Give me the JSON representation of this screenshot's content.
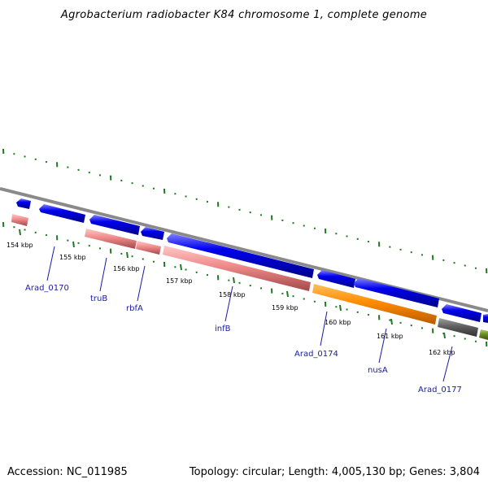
{
  "title": "Agrobacterium radiobacter K84 chromosome 1, complete genome",
  "accession": "Accession: NC_011985",
  "summary": "Topology: circular; Length: 4,005,130 bp; Genes: 3,804",
  "colors": {
    "backbone": "#8a8a8a",
    "forward_gene": "#0000ee",
    "rna_pink": "#ef8a8a",
    "orange": "#ff8c00",
    "gray_feature": "#606060",
    "olive": "#6b8e23",
    "tick_green": "#1e7a1e",
    "label_blue": "#1a1aa6"
  },
  "scale_ticks": [
    {
      "label": "154 kbp"
    },
    {
      "label": "155 kbp"
    },
    {
      "label": "156 kbp"
    },
    {
      "label": "157 kbp"
    },
    {
      "label": "158 kbp"
    },
    {
      "label": "159 kbp"
    },
    {
      "label": "160 kbp"
    },
    {
      "label": "161 kbp"
    },
    {
      "label": "162 kbp"
    }
  ],
  "gene_labels": [
    {
      "name": "Arad_0170"
    },
    {
      "name": "truB"
    },
    {
      "name": "rbfA"
    },
    {
      "name": "infB"
    },
    {
      "name": "Arad_0174"
    },
    {
      "name": "nusA"
    },
    {
      "name": "Arad_0177"
    }
  ]
}
